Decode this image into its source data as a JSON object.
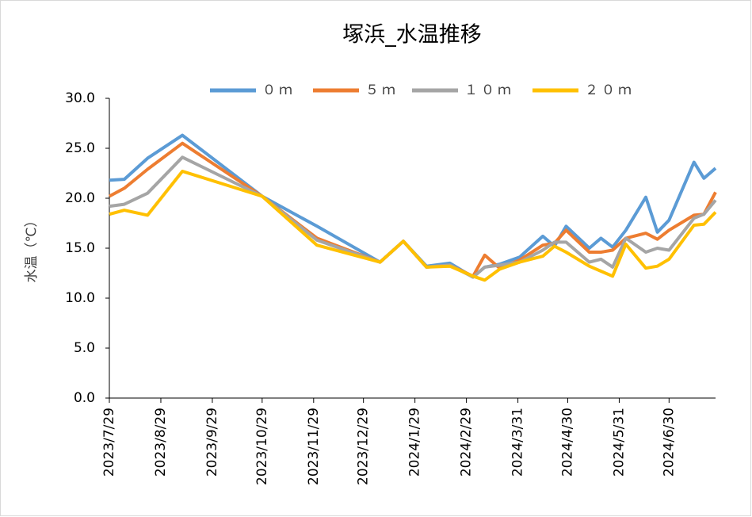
{
  "chart_data": {
    "type": "line",
    "title": "塚浜_水温推移",
    "y_label": "水温（℃）",
    "x": [
      "2023-07-29",
      "2023-08-07",
      "2023-08-21",
      "2023-09-11",
      "2023-10-29",
      "2023-12-01",
      "2024-01-08",
      "2024-01-22",
      "2024-02-05",
      "2024-02-19",
      "2024-03-04",
      "2024-03-11",
      "2024-03-20",
      "2024-04-01",
      "2024-04-15",
      "2024-04-22",
      "2024-04-29",
      "2024-05-13",
      "2024-05-20",
      "2024-05-27",
      "2024-06-04",
      "2024-06-16",
      "2024-06-23",
      "2024-06-30",
      "2024-07-15",
      "2024-07-21",
      "2024-07-28"
    ],
    "series": [
      {
        "name": "０ｍ",
        "color": "#5b9bd5",
        "values": [
          21.8,
          21.9,
          24.0,
          26.3,
          20.2,
          17.2,
          13.6,
          15.7,
          13.2,
          13.5,
          12.1,
          13.1,
          13.4,
          14.1,
          16.2,
          15.2,
          17.2,
          15.0,
          16.0,
          15.1,
          16.8,
          20.1,
          16.6,
          17.8,
          23.6,
          22.0,
          23.0
        ]
      },
      {
        "name": "５ｍ",
        "color": "#ed7d31",
        "values": [
          20.2,
          21.0,
          22.9,
          25.5,
          20.2,
          16.0,
          13.6,
          15.7,
          13.1,
          13.3,
          12.2,
          14.3,
          13.0,
          13.8,
          15.3,
          15.5,
          16.8,
          14.6,
          14.6,
          14.8,
          16.0,
          16.5,
          15.9,
          16.8,
          18.3,
          18.4,
          20.6
        ]
      },
      {
        "name": "１０ｍ",
        "color": "#a5a5a5",
        "values": [
          19.2,
          19.4,
          20.5,
          24.1,
          20.2,
          15.8,
          13.6,
          15.7,
          13.1,
          13.3,
          12.1,
          13.1,
          13.3,
          13.6,
          14.8,
          15.6,
          15.6,
          13.6,
          13.9,
          13.1,
          16.0,
          14.6,
          15.0,
          14.8,
          18.0,
          18.4,
          19.8
        ]
      },
      {
        "name": "２０ｍ",
        "color": "#ffc000",
        "values": [
          18.4,
          18.8,
          18.3,
          22.7,
          20.2,
          15.3,
          13.6,
          15.7,
          13.1,
          13.2,
          12.2,
          11.8,
          12.9,
          13.6,
          14.2,
          15.2,
          14.6,
          13.2,
          12.7,
          12.2,
          15.4,
          13.0,
          13.2,
          13.9,
          17.3,
          17.4,
          18.6
        ]
      }
    ],
    "xlim": [
      "2023-07-29",
      "2024-07-28"
    ],
    "xticks": [
      {
        "value": "2023-07-29",
        "label": "2023/7/29"
      },
      {
        "value": "2023-08-29",
        "label": "2023/8/29"
      },
      {
        "value": "2023-09-29",
        "label": "2023/9/29"
      },
      {
        "value": "2023-10-29",
        "label": "2023/10/29"
      },
      {
        "value": "2023-11-29",
        "label": "2023/11/29"
      },
      {
        "value": "2023-12-29",
        "label": "2023/12/29"
      },
      {
        "value": "2024-01-29",
        "label": "2024/1/29"
      },
      {
        "value": "2024-02-29",
        "label": "2024/2/29"
      },
      {
        "value": "2024-03-31",
        "label": "2024/3/31"
      },
      {
        "value": "2024-04-30",
        "label": "2024/4/30"
      },
      {
        "value": "2024-05-31",
        "label": "2024/5/31"
      },
      {
        "value": "2024-06-30",
        "label": "2024/6/30"
      }
    ],
    "ylim": [
      0,
      30
    ],
    "yticks": [
      {
        "value": 0,
        "label": "0.0"
      },
      {
        "value": 5,
        "label": "5.0"
      },
      {
        "value": 10,
        "label": "10.0"
      },
      {
        "value": 15,
        "label": "15.0"
      },
      {
        "value": 20,
        "label": "20.0"
      },
      {
        "value": 25,
        "label": "25.0"
      },
      {
        "value": 30,
        "label": "30.0"
      }
    ],
    "legend": "top"
  }
}
